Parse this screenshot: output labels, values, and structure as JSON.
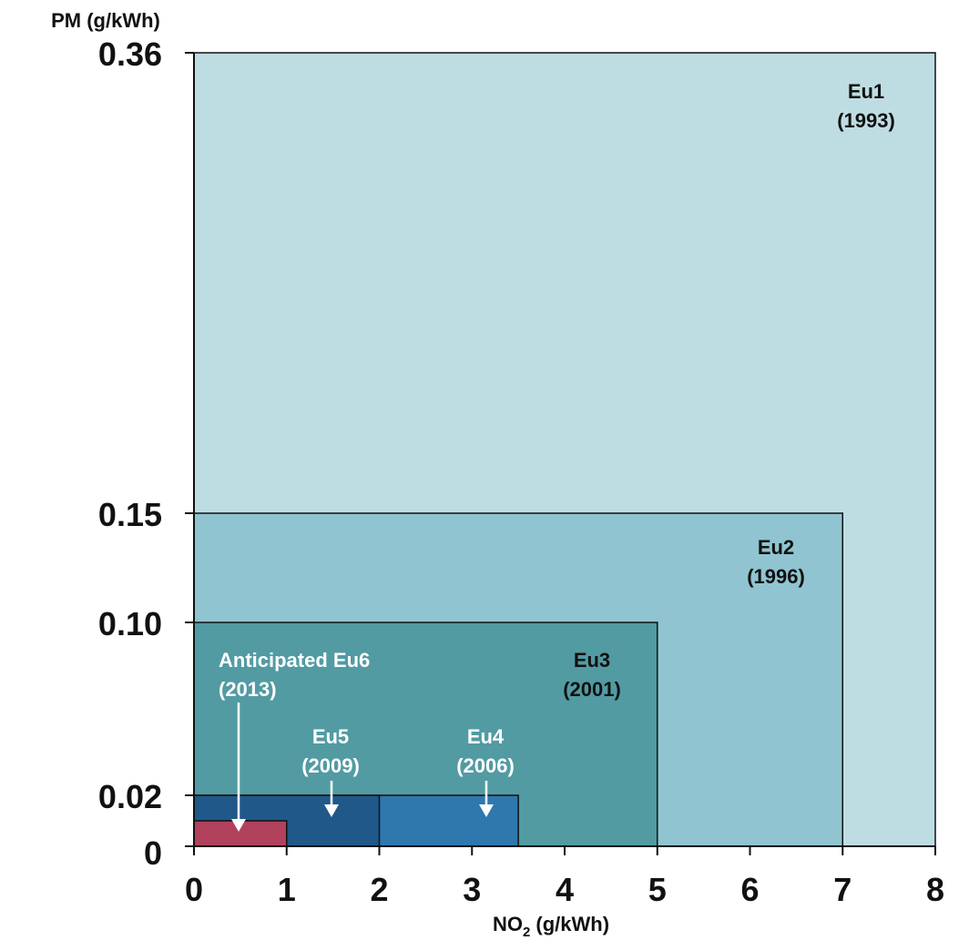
{
  "chart_data": {
    "type": "area",
    "xlabel_main": "NO",
    "xlabel_sub": "2",
    "xlabel_rest": " (g/kWh)",
    "ylabel": "PM (g/kWh)",
    "xlim": [
      0,
      8
    ],
    "x_ticks": [
      "0",
      "1",
      "2",
      "3",
      "4",
      "5",
      "6",
      "7",
      "8"
    ],
    "y_ticks": [
      {
        "value": 0.36,
        "label": "0.36"
      },
      {
        "value": 0.15,
        "label": "0.15"
      },
      {
        "value": 0.1,
        "label": "0.10"
      },
      {
        "value": 0.02,
        "label": "0.02"
      },
      {
        "value": 0,
        "label": "0"
      }
    ],
    "grid": false,
    "regions": [
      {
        "line1": "Eu1",
        "line2": "(1993)",
        "nox": 8,
        "pm": 0.36,
        "color": "#bedde2",
        "text_color": "#111111"
      },
      {
        "line1": "Eu2",
        "line2": "(1996)",
        "nox": 7,
        "pm": 0.15,
        "color": "#8fc4d0",
        "text_color": "#111111"
      },
      {
        "line1": "Eu3",
        "line2": "(2001)",
        "nox": 5,
        "pm": 0.1,
        "color": "#529ba3",
        "text_color": "#111111"
      },
      {
        "line1": "Eu4",
        "line2": "(2006)",
        "nox": 3.5,
        "pm": 0.02,
        "color": "#2f78ae",
        "text_color": "#ffffff"
      },
      {
        "line1": "Eu5",
        "line2": "(2009)",
        "nox": 2,
        "pm": 0.02,
        "color": "#20588a",
        "text_color": "#ffffff"
      },
      {
        "line1": "Anticipated Eu6",
        "line2": "(2013)",
        "nox": 1,
        "pm": 0.01,
        "color": "#b2415e",
        "text_color": "#ffffff"
      }
    ]
  }
}
